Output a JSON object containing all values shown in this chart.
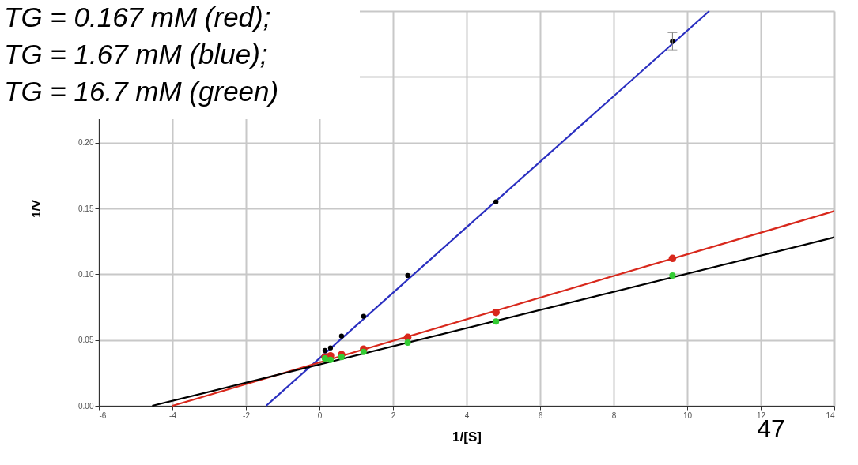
{
  "chart_data": {
    "type": "scatter",
    "title": "TG = 0.167 mM (red);\nTG = 1.67 mM (blue);\nTG = 16.7 mM (green)",
    "xlabel": "1/[S]",
    "ylabel": "1/V",
    "annotations": [
      "47"
    ],
    "series": [
      {
        "type": "line",
        "marker": "none",
        "color": "#2a2fc0",
        "x": [
          -1.45,
          10.6
        ],
        "values": [
          0,
          0.3
        ]
      },
      {
        "type": "line",
        "marker": "none",
        "color": "#d8281c",
        "x": [
          -4,
          14
        ],
        "values": [
          0,
          0.148
        ]
      },
      {
        "type": "line",
        "marker": "none",
        "color": "#000000",
        "x": [
          -4.55,
          14
        ],
        "values": [
          0,
          0.128
        ]
      },
      {
        "color": "#d8281c",
        "x": [
          0.15,
          0.3,
          0.6,
          1.2,
          2.4,
          4.8,
          9.6
        ],
        "values": [
          0.037,
          0.038,
          0.039,
          0.043,
          0.052,
          0.071,
          0.112
        ]
      },
      {
        "color": "#33cc33",
        "x": [
          0.15,
          0.3,
          0.6,
          1.2,
          2.4,
          4.8,
          9.6
        ],
        "values": [
          0.036,
          0.035,
          0.037,
          0.041,
          0.048,
          0.064,
          0.099
        ]
      },
      {
        "color": "#000000",
        "x": [
          0.15,
          0.3,
          0.6,
          1.2,
          2.4,
          4.8,
          9.6
        ],
        "values": [
          0.042,
          0.044,
          0.053,
          0.068,
          0.099,
          0.155,
          0.277
        ],
        "errors": [
          null,
          null,
          null,
          null,
          null,
          null,
          0.0065
        ]
      }
    ],
    "xlim": [
      -6,
      14
    ],
    "xticks": [
      -6,
      -4,
      -2,
      0,
      2,
      4,
      6,
      8,
      10,
      12,
      14
    ],
    "ylim": [
      0,
      0.3
    ],
    "yticks": [
      {
        "value": 0,
        "label": "0.00"
      },
      {
        "value": 0.05,
        "label": "0.05"
      },
      {
        "value": 0.1,
        "label": "0.10"
      },
      {
        "value": 0.15,
        "label": "0.15"
      },
      {
        "value": 0.2,
        "label": "0.20"
      },
      {
        "value": 0.25,
        "label": null
      },
      {
        "value": 0.3,
        "label": null
      }
    ],
    "grid": true,
    "marker": "circle"
  }
}
